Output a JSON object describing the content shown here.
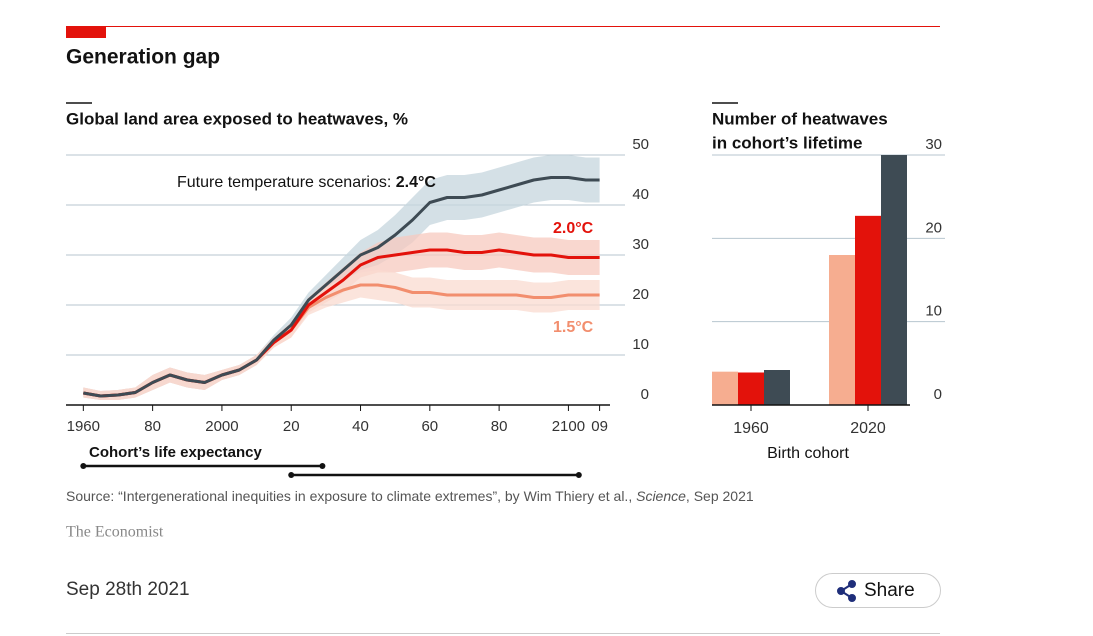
{
  "header": {
    "title": "Generation gap"
  },
  "chart_data": [
    {
      "type": "line",
      "title": "Global land area exposed to heatwaves, %",
      "annotation": "Future temperature scenarios: ",
      "x": [
        1960,
        1965,
        1970,
        1975,
        1980,
        1985,
        1990,
        1995,
        2000,
        2005,
        2010,
        2015,
        2020,
        2025,
        2030,
        2035,
        2040,
        2045,
        2050,
        2055,
        2060,
        2065,
        2070,
        2075,
        2080,
        2085,
        2090,
        2095,
        2100,
        2105,
        2109
      ],
      "series": [
        {
          "name": "2.4°C",
          "color": "#3e4b54",
          "band_color": "#c5d5de",
          "values": [
            2.4,
            1.8,
            2,
            2.5,
            4.5,
            6,
            5,
            4.5,
            6,
            7,
            9,
            13,
            16,
            21,
            24,
            27,
            30,
            31.5,
            34,
            37,
            40.5,
            41.5,
            41.5,
            42,
            43,
            44,
            45,
            45.5,
            45.5,
            45,
            45
          ],
          "upper": [
            3.5,
            2.8,
            3,
            3.5,
            6,
            7.5,
            6.5,
            6,
            7,
            8,
            10,
            14,
            17.5,
            22.5,
            26,
            29.5,
            33,
            35,
            38,
            41.5,
            45,
            46,
            46,
            46.5,
            47.5,
            48.5,
            49.5,
            50,
            50,
            49.5,
            49.5
          ],
          "lower": [
            1.5,
            1,
            1,
            1.5,
            3,
            4.5,
            3.5,
            3,
            5,
            6,
            8,
            12,
            14.5,
            19.5,
            22,
            24.5,
            27,
            28,
            30,
            32.5,
            36,
            37,
            37,
            37.5,
            38.5,
            39.5,
            40.5,
            41,
            41,
            40.5,
            40.5
          ]
        },
        {
          "name": "2.0°C",
          "color": "#e3120b",
          "band_color": "#f7c9bf",
          "values": [
            2.4,
            1.8,
            2,
            2.5,
            4.5,
            6,
            5,
            4.5,
            6,
            7,
            9,
            12.5,
            15,
            20,
            22.5,
            25,
            28,
            29.5,
            30,
            30.5,
            31,
            31,
            30.5,
            30.5,
            31,
            30.5,
            30,
            30,
            29.5,
            29.5,
            29.5
          ],
          "upper": [
            3.5,
            2.8,
            3,
            3.5,
            6,
            7.5,
            6.5,
            6,
            7,
            8,
            10,
            13.5,
            16.5,
            21.5,
            24.5,
            27.5,
            30.5,
            32.5,
            33.5,
            34,
            34.5,
            34.5,
            34,
            34,
            34.5,
            34,
            33.5,
            33.5,
            33,
            33,
            33
          ],
          "lower": [
            1.5,
            1,
            1,
            1.5,
            3,
            4.5,
            3.5,
            3,
            5,
            6,
            8,
            11.5,
            13.5,
            18.5,
            20.5,
            22.5,
            25.5,
            26.5,
            26.5,
            27,
            27.5,
            27.5,
            27,
            27,
            27.5,
            27,
            26.5,
            26.5,
            26,
            26,
            26
          ]
        },
        {
          "name": "1.5°C",
          "color": "#f28e6e",
          "band_color": "#fadbd0",
          "values": [
            2.4,
            1.8,
            2,
            2.5,
            4.5,
            6,
            5,
            4.5,
            6,
            7,
            9,
            12.5,
            15,
            19.5,
            21.5,
            23,
            24,
            24,
            23.5,
            22.5,
            22.5,
            22,
            22,
            22,
            22,
            22,
            21.5,
            21.5,
            22,
            22,
            22
          ],
          "upper": [
            3.5,
            2.8,
            3,
            3.5,
            6,
            7.5,
            6.5,
            6,
            7,
            8,
            10,
            13.5,
            16.5,
            21,
            23.5,
            25.5,
            26.5,
            27,
            26.5,
            25.5,
            25.5,
            25,
            25,
            25,
            25,
            25,
            24.5,
            24.5,
            25,
            25,
            25
          ],
          "lower": [
            1.5,
            1,
            1,
            1.5,
            3,
            4.5,
            3.5,
            3,
            5,
            6,
            8,
            11.5,
            13.5,
            18,
            19.5,
            20.5,
            21.5,
            21,
            20.5,
            19.5,
            19.5,
            19,
            19,
            19,
            19,
            19,
            18.5,
            18.5,
            19,
            19,
            19
          ]
        }
      ],
      "xlim": [
        1955,
        2112
      ],
      "xticks": [
        1960,
        {
          "value": 1980,
          "label": "80"
        },
        2000,
        {
          "value": 2020,
          "label": "20"
        },
        {
          "value": 2040,
          "label": "40"
        },
        {
          "value": 2060,
          "label": "60"
        },
        {
          "value": 2080,
          "label": "80"
        },
        2100,
        {
          "value": 2109,
          "label": "09"
        }
      ],
      "ylim": [
        0,
        50
      ],
      "yticks": [
        0,
        10,
        20,
        30,
        40,
        50
      ],
      "grid": true,
      "life_expectancy": {
        "label": "Cohort’s life expectancy",
        "spans": [
          [
            1960,
            2029
          ],
          [
            2020,
            2103
          ]
        ]
      }
    },
    {
      "type": "bar",
      "title": [
        "Number of heatwaves",
        "in cohort’s lifetime"
      ],
      "xlabel": "Birth cohort",
      "categories": [
        "1960",
        "2020"
      ],
      "series": [
        {
          "color": "#f6ad90",
          "values": [
            4,
            18
          ]
        },
        {
          "color": "#e3120b",
          "values": [
            3.9,
            22.7
          ]
        },
        {
          "color": "#3e4b54",
          "values": [
            4.2,
            30
          ]
        }
      ],
      "ylim": [
        0,
        30
      ],
      "yticks": [
        0,
        10,
        20,
        30
      ],
      "grid": true
    }
  ],
  "source": [
    "Source: “Intergenerational inequities in exposure to climate extremes”, by Wim Thiery et al., ",
    "Science",
    ", Sep 2021"
  ],
  "brand": "The Economist",
  "date": "Sep 28th 2021",
  "share": "Share"
}
